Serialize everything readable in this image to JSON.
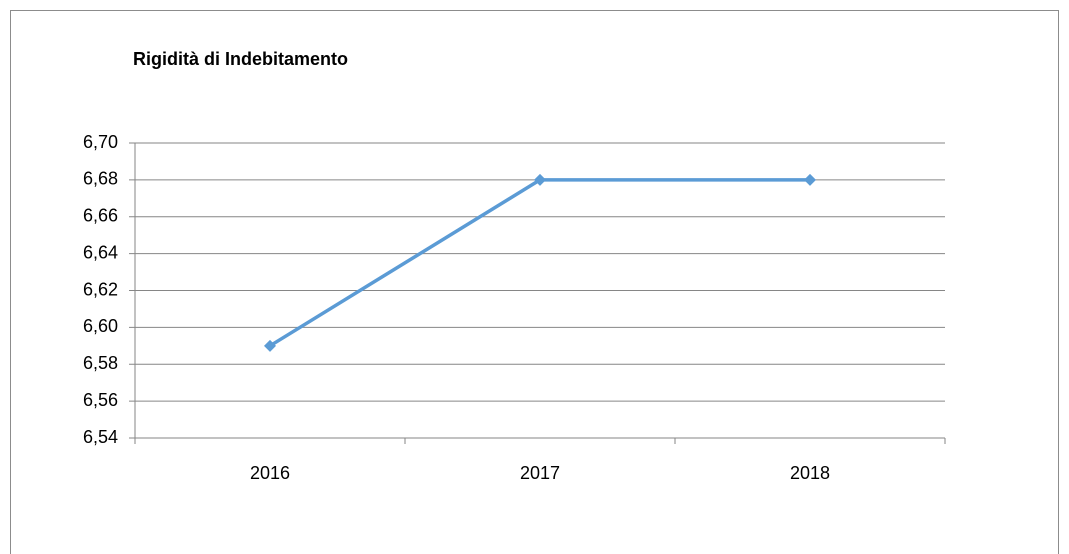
{
  "chart_data": {
    "type": "line",
    "title": "Rigidità di Indebitamento",
    "categories": [
      "2016",
      "2017",
      "2018"
    ],
    "values": [
      6.59,
      6.68,
      6.68
    ],
    "color": "#5b9bd5",
    "ylim": [
      6.54,
      6.7
    ],
    "yticks": [
      {
        "value": 6.54,
        "label": "6,54"
      },
      {
        "value": 6.56,
        "label": "6,56"
      },
      {
        "value": 6.58,
        "label": "6,58"
      },
      {
        "value": 6.6,
        "label": "6,60"
      },
      {
        "value": 6.62,
        "label": "6,62"
      },
      {
        "value": 6.64,
        "label": "6,64"
      },
      {
        "value": 6.66,
        "label": "6,66"
      },
      {
        "value": 6.68,
        "label": "6,68"
      },
      {
        "value": 6.7,
        "label": "6,70"
      }
    ],
    "grid": true
  }
}
